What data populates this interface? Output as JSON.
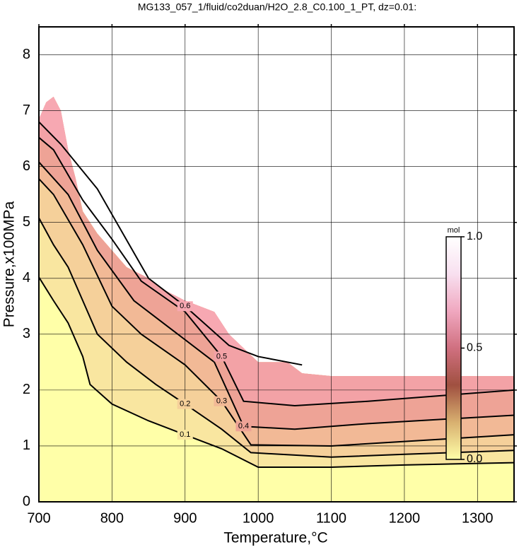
{
  "chart_data": {
    "type": "contour",
    "title": "MG133_057_1/fluid/co2duan/H2O_2.8_C0.100_1_PT, dz=0.01:",
    "x_label": "Temperature,°C",
    "y_label": "Pressure,x100MPa",
    "xlim": [
      700,
      1350
    ],
    "ylim": [
      0,
      8.5
    ],
    "xticks": [
      700,
      800,
      900,
      1000,
      1100,
      1200,
      1300
    ],
    "yticks": [
      0,
      1,
      2,
      3,
      4,
      5,
      6,
      7,
      8
    ],
    "grid": true,
    "base_color": "#ffffa8",
    "domain": {
      "x": [
        700,
        710,
        720,
        730,
        740,
        750,
        760,
        770,
        780,
        800,
        820,
        850,
        870,
        900,
        920,
        940,
        960,
        980,
        1000,
        1040,
        1060,
        1100,
        1350
      ],
      "y": [
        6.85,
        7.15,
        7.25,
        7.0,
        6.3,
        5.8,
        5.2,
        5.0,
        4.8,
        4.5,
        4.2,
        4.0,
        3.8,
        3.6,
        3.5,
        3.4,
        3.0,
        2.75,
        2.5,
        2.5,
        2.3,
        2.25,
        2.25
      ]
    },
    "series": [
      {
        "level": 0.1,
        "color": "#f9e6a0",
        "x": [
          700,
          720,
          740,
          760,
          770,
          800,
          850,
          900,
          950,
          1000,
          1100,
          1200,
          1350
        ],
        "y": [
          4.02,
          3.6,
          3.2,
          2.6,
          2.1,
          1.75,
          1.45,
          1.2,
          0.95,
          0.62,
          0.62,
          0.66,
          0.7
        ]
      },
      {
        "level": 0.2,
        "color": "#f5d09a",
        "x": [
          700,
          720,
          740,
          760,
          780,
          820,
          860,
          900,
          950,
          990,
          1100,
          1200,
          1350
        ],
        "y": [
          5.08,
          4.6,
          4.2,
          3.6,
          3.0,
          2.5,
          2.1,
          1.75,
          1.3,
          0.88,
          0.8,
          0.85,
          0.92
        ]
      },
      {
        "level": 0.3,
        "color": "#f2b996",
        "x": [
          700,
          720,
          760,
          800,
          840,
          900,
          950,
          990,
          1100,
          1200,
          1350
        ],
        "y": [
          5.78,
          5.5,
          4.6,
          3.5,
          3.0,
          2.45,
          1.8,
          1.02,
          1.0,
          1.08,
          1.2
        ]
      },
      {
        "level": 0.4,
        "color": "#eea396",
        "x": [
          700,
          740,
          780,
          830,
          880,
          940,
          980,
          1050,
          1150,
          1350
        ],
        "y": [
          6.08,
          5.5,
          4.5,
          3.6,
          3.1,
          2.5,
          1.35,
          1.3,
          1.4,
          1.55
        ]
      },
      {
        "level": 0.5,
        "color": "#f3a2a6",
        "x": [
          700,
          720,
          760,
          800,
          840,
          900,
          950,
          980,
          1050,
          1150,
          1350
        ],
        "y": [
          6.52,
          6.3,
          5.4,
          4.7,
          3.95,
          3.4,
          2.6,
          1.8,
          1.72,
          1.8,
          2.0
        ]
      },
      {
        "level": 0.6,
        "color": "#f7a8b2",
        "x": [
          700,
          730,
          780,
          850,
          900,
          960,
          1000,
          1060
        ],
        "y": [
          6.8,
          6.4,
          5.6,
          4.0,
          3.5,
          2.8,
          2.6,
          2.45
        ]
      }
    ],
    "colorbar": {
      "label": "mol",
      "lim": [
        0,
        1
      ],
      "colors": [
        "#ffffa8",
        "#d8b070",
        "#a05040",
        "#d07080",
        "#f0a8c0",
        "#f8e0f0",
        "#ffffff"
      ],
      "ticks": [
        {
          "value": 0,
          "label": "0.0"
        },
        {
          "value": 0.5,
          "label": "0.5"
        },
        {
          "value": 1,
          "label": "1.0"
        }
      ]
    }
  }
}
